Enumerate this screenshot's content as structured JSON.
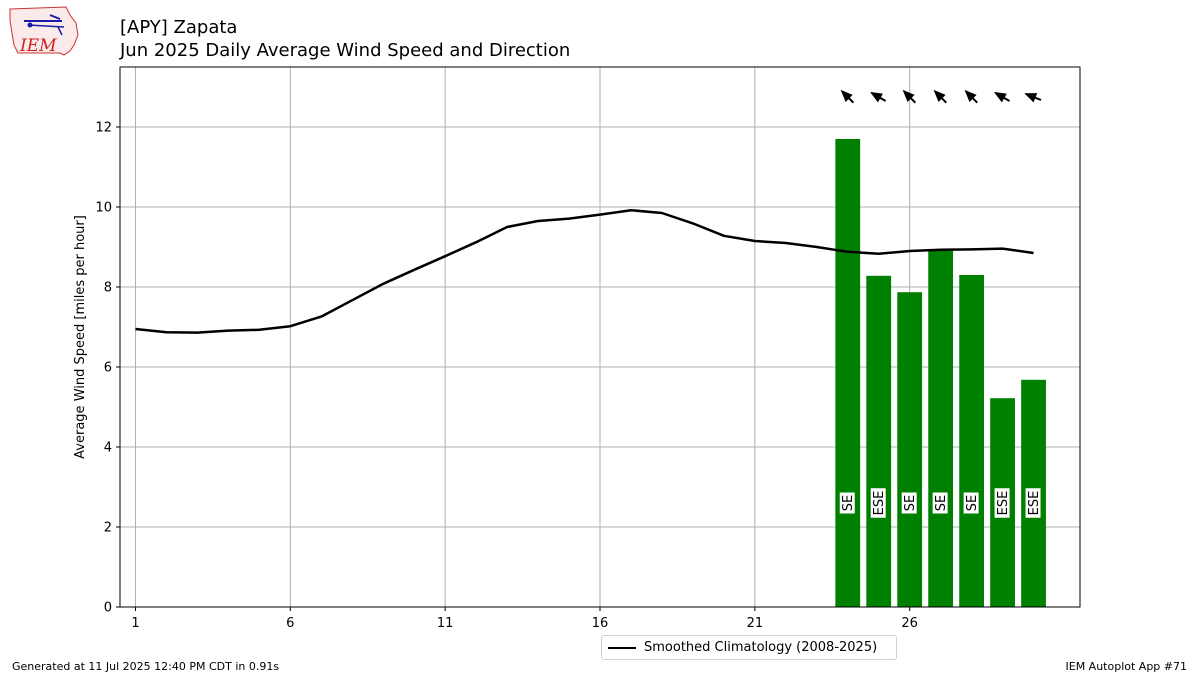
{
  "header": {
    "logo_text": "IEM",
    "title_line1": "[APY] Zapata",
    "title_line2": "Jun 2025 Daily Average Wind Speed and Direction"
  },
  "footer": {
    "generated": "Generated at 11 Jul 2025 12:40 PM CDT in 0.91s",
    "app": "IEM Autoplot App #71"
  },
  "colors": {
    "bar": "#008000",
    "line": "#000000",
    "grid": "#b0b0b0"
  },
  "chart_data": {
    "type": "bar",
    "title": "[APY] Zapata\nJun 2025 Daily Average Wind Speed and Direction",
    "xlabel": "",
    "ylabel": "Average Wind Speed [miles per hour]",
    "xlim": [
      0.5,
      31.5
    ],
    "ylim": [
      0,
      13.5
    ],
    "xticks": [
      1,
      6,
      11,
      16,
      21,
      26
    ],
    "yticks": [
      0,
      2,
      4,
      6,
      8,
      10,
      12
    ],
    "grid": true,
    "legend_position": "bottom-center",
    "bars": {
      "days": [
        24,
        25,
        26,
        27,
        28,
        29,
        30
      ],
      "values": [
        11.7,
        8.28,
        7.87,
        8.92,
        8.3,
        5.22,
        5.68
      ],
      "direction_labels": [
        "SE",
        "ESE",
        "SE",
        "SE",
        "SE",
        "ESE",
        "ESE"
      ],
      "arrow_directions_deg": [
        135,
        120,
        135,
        135,
        135,
        120,
        112
      ]
    },
    "series": [
      {
        "name": "Smoothed Climatology (2008-2025)",
        "x": [
          1,
          2,
          3,
          4,
          5,
          6,
          7,
          8,
          9,
          10,
          11,
          12,
          13,
          14,
          15,
          16,
          17,
          18,
          19,
          20,
          21,
          22,
          23,
          24,
          25,
          26,
          27,
          28,
          29,
          30
        ],
        "values": [
          6.95,
          6.87,
          6.86,
          6.91,
          6.93,
          7.02,
          7.26,
          7.67,
          8.08,
          8.43,
          8.77,
          9.12,
          9.5,
          9.65,
          9.71,
          9.81,
          9.92,
          9.85,
          9.59,
          9.28,
          9.15,
          9.1,
          9.0,
          8.88,
          8.83,
          8.9,
          8.93,
          8.94,
          8.96,
          8.85
        ]
      }
    ]
  }
}
